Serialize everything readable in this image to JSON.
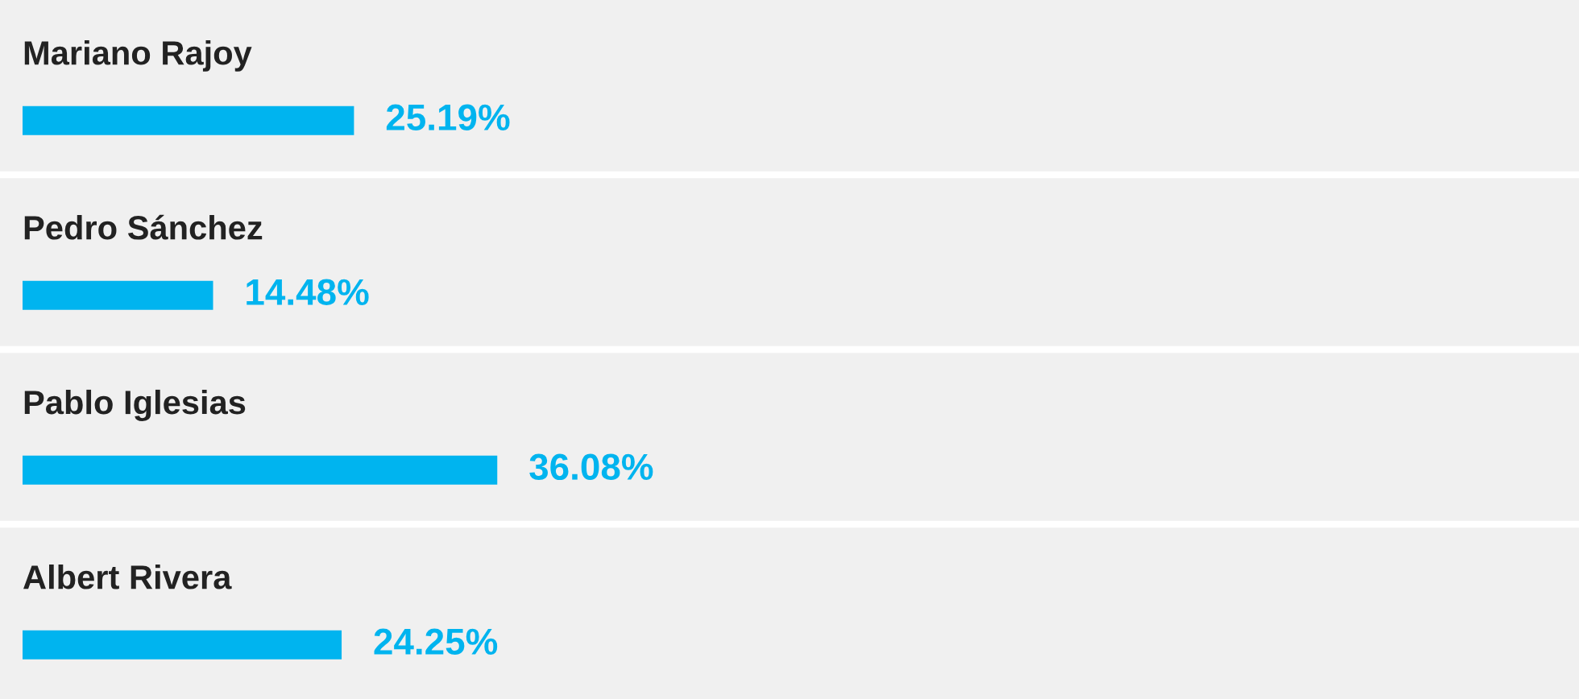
{
  "chart_data": {
    "type": "bar",
    "orientation": "horizontal",
    "categories": [
      "Mariano Rajoy",
      "Pedro Sánchez",
      "Pablo Iglesias",
      "Albert Rivera"
    ],
    "values": [
      25.19,
      14.48,
      36.08,
      24.25
    ],
    "value_labels": [
      "25.19%",
      "14.48%",
      "36.08%",
      "24.25%"
    ],
    "color": "#00b4ef"
  }
}
